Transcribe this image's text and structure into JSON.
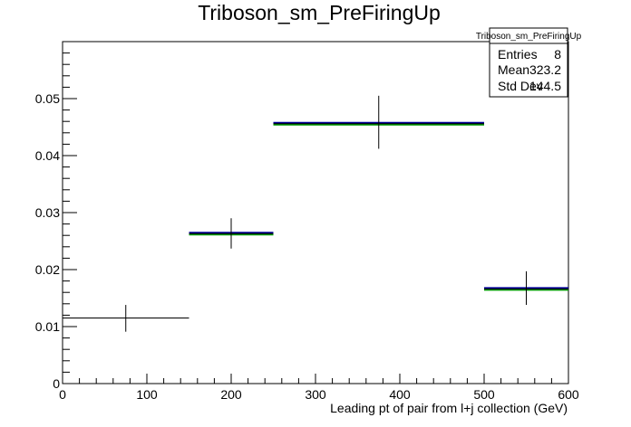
{
  "chart_data": {
    "type": "histogram",
    "title": "Triboson_sm_PreFiringUp",
    "xlabel": "Leading pt of pair from l+j collection (GeV)",
    "ylabel": "",
    "xlim": [
      0,
      600
    ],
    "ylim": [
      0,
      0.06
    ],
    "x_ticks": [
      0,
      100,
      200,
      300,
      400,
      500,
      600
    ],
    "y_ticks": [
      0,
      0.01,
      0.02,
      0.03,
      0.04,
      0.05
    ],
    "y_tick_labels": [
      "0",
      "0.01",
      "0.02",
      "0.03",
      "0.04",
      "0.05"
    ],
    "bins": [
      {
        "xlow": 0,
        "xhigh": 150,
        "value": 0.0115,
        "err_low": 0.0091,
        "err_high": 0.0138
      },
      {
        "xlow": 150,
        "xhigh": 250,
        "value": 0.0263,
        "err_low": 0.0237,
        "err_high": 0.029
      },
      {
        "xlow": 250,
        "xhigh": 500,
        "value": 0.0456,
        "err_low": 0.0412,
        "err_high": 0.0505
      },
      {
        "xlow": 500,
        "xhigh": 600,
        "value": 0.0166,
        "err_low": 0.0138,
        "err_high": 0.0197
      }
    ],
    "overlay_bins": [
      {
        "xlow": 150,
        "xhigh": 250,
        "value": 0.0263
      },
      {
        "xlow": 250,
        "xhigh": 500,
        "value": 0.0456
      },
      {
        "xlow": 500,
        "xhigh": 600,
        "value": 0.0166
      }
    ],
    "colors": {
      "data": "#000000",
      "overlay_blue": "#000099",
      "overlay_green": "#009900"
    },
    "stats_box": {
      "title": "Triboson_sm_PreFiringUp",
      "rows": [
        {
          "label": "Entries",
          "value": "8"
        },
        {
          "label": "Mean",
          "value": "323.2"
        },
        {
          "label": "Std Dev",
          "value": "144.5"
        }
      ]
    }
  }
}
